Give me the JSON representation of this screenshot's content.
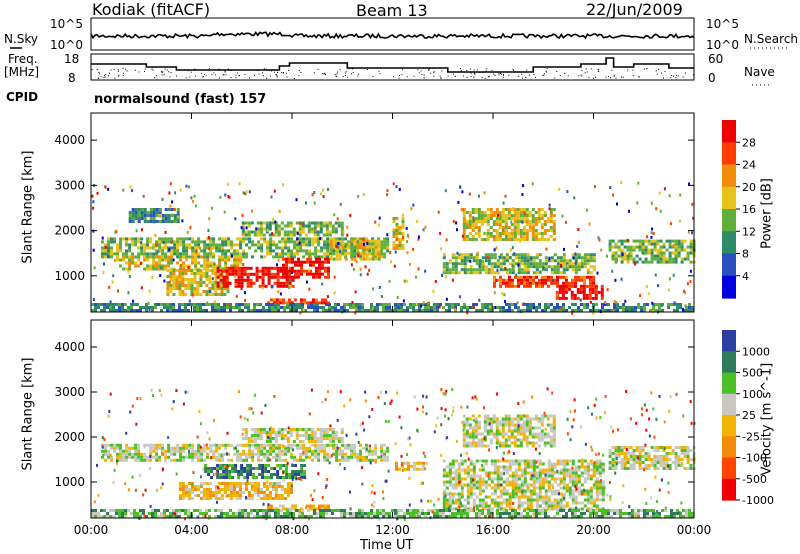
{
  "header": {
    "station": "Kodiak (fitACF)",
    "beam": "Beam 13",
    "date": "22/Jun/2009"
  },
  "noise_panel": {
    "left_label": "N.Sky",
    "right_label": "N.Search",
    "left_ticks": [
      "10^5",
      "10^0"
    ],
    "right_ticks": [
      "10^5",
      "10^0"
    ]
  },
  "freq_panel": {
    "left_label_1": "Freq.",
    "left_label_2": "[MHz]",
    "right_label": "Nave",
    "left_ticks": [
      "18",
      "8"
    ],
    "right_ticks": [
      "60",
      "0"
    ]
  },
  "cpid": {
    "label": "CPID",
    "value": "normalsound (fast) 157"
  },
  "colors": {
    "background": "#ffffff",
    "ground_scatter": "#c8c8c0",
    "power_scale": [
      "#0000dd",
      "#2a4fbf",
      "#2f8a6a",
      "#5fae3a",
      "#e6c21a",
      "#f28c0a",
      "#ff3b00",
      "#ee0000"
    ],
    "velocity_scale": [
      "#2a3fa0",
      "#2f7a5a",
      "#4bbf2a",
      "#c8c8c0",
      "#f2b400",
      "#f28c0a",
      "#ff4400",
      "#ee0000"
    ]
  },
  "chart_data": [
    {
      "type": "heatmap",
      "name": "power",
      "xlabel": "",
      "ylabel": "Slant Range [km]",
      "x_ticks": [
        "00:00",
        "04:00",
        "08:00",
        "12:00",
        "16:00",
        "20:00",
        "00:00"
      ],
      "y_ticks": [
        1000,
        2000,
        3000,
        4000
      ],
      "ylim": [
        200,
        4600
      ],
      "colorbar": {
        "label": "Power [dB]",
        "ticks": [
          "4",
          "8",
          "12",
          "16",
          "20",
          "24",
          "28"
        ]
      },
      "regions": [
        {
          "t0": 0.4,
          "t1": 11.8,
          "r0": 1450,
          "r1": 1850,
          "level": 3
        },
        {
          "t0": 1.0,
          "t1": 6.0,
          "r0": 1150,
          "r1": 1450,
          "level": 4
        },
        {
          "t0": 3.0,
          "t1": 5.5,
          "r0": 600,
          "r1": 1150,
          "level": 4
        },
        {
          "t0": 5.0,
          "t1": 8.0,
          "r0": 800,
          "r1": 1200,
          "level": 7
        },
        {
          "t0": 7.6,
          "t1": 9.5,
          "r0": 950,
          "r1": 1400,
          "level": 7
        },
        {
          "t0": 9.5,
          "t1": 11.5,
          "r0": 1400,
          "r1": 1800,
          "level": 4
        },
        {
          "t0": 7.0,
          "t1": 9.5,
          "r0": 400,
          "r1": 500,
          "level": 6
        },
        {
          "t0": 1.5,
          "t1": 3.5,
          "r0": 2200,
          "r1": 2500,
          "level": 2
        },
        {
          "t0": 6.0,
          "t1": 10.0,
          "r0": 1900,
          "r1": 2200,
          "level": 3
        },
        {
          "t0": 12.0,
          "t1": 12.4,
          "r0": 1600,
          "r1": 2300,
          "level": 4
        },
        {
          "t0": 14.8,
          "t1": 18.5,
          "r0": 1800,
          "r1": 2500,
          "level": 4
        },
        {
          "t0": 14.0,
          "t1": 20.0,
          "r0": 1100,
          "r1": 1500,
          "level": 3
        },
        {
          "t0": 16.0,
          "t1": 20.0,
          "r0": 750,
          "r1": 1000,
          "level": 6
        },
        {
          "t0": 18.5,
          "t1": 20.4,
          "r0": 500,
          "r1": 800,
          "level": 7
        },
        {
          "t0": 20.6,
          "t1": 24.0,
          "r0": 1300,
          "r1": 1800,
          "level": 3
        },
        {
          "t0": 0.0,
          "t1": 24.0,
          "r0": 250,
          "r1": 400,
          "level": 2
        }
      ]
    },
    {
      "type": "heatmap",
      "name": "velocity",
      "xlabel": "Time UT",
      "ylabel": "Slant Range [km]",
      "x_ticks": [
        "00:00",
        "04:00",
        "08:00",
        "12:00",
        "16:00",
        "20:00",
        "00:00"
      ],
      "y_ticks": [
        1000,
        2000,
        3000,
        4000
      ],
      "ylim": [
        200,
        4600
      ],
      "colorbar": {
        "label": "Velocity [m s^-1]",
        "ticks": [
          "1000",
          "500",
          "100",
          "25",
          "-25",
          "-100",
          "-500",
          "-1000"
        ]
      },
      "regions": [
        {
          "t0": 0.4,
          "t1": 11.8,
          "r0": 1450,
          "r1": 1850,
          "level": 3
        },
        {
          "t0": 3.5,
          "t1": 8.0,
          "r0": 600,
          "r1": 1000,
          "level": 4
        },
        {
          "t0": 4.5,
          "t1": 8.5,
          "r0": 1100,
          "r1": 1400,
          "level": 1
        },
        {
          "t0": 6.0,
          "t1": 10.0,
          "r0": 1900,
          "r1": 2200,
          "level": 3
        },
        {
          "t0": 12.1,
          "t1": 13.4,
          "r0": 1250,
          "r1": 1450,
          "level": 4
        },
        {
          "t0": 14.8,
          "t1": 18.5,
          "r0": 1800,
          "r1": 2500,
          "level": 3
        },
        {
          "t0": 14.0,
          "t1": 20.4,
          "r0": 400,
          "r1": 1500,
          "level": 3
        },
        {
          "t0": 20.6,
          "t1": 24.0,
          "r0": 1300,
          "r1": 1800,
          "level": 3
        },
        {
          "t0": 7.0,
          "t1": 9.5,
          "r0": 400,
          "r1": 500,
          "level": 4
        },
        {
          "t0": 0.0,
          "t1": 24.0,
          "r0": 250,
          "r1": 400,
          "level": 2
        }
      ]
    }
  ]
}
